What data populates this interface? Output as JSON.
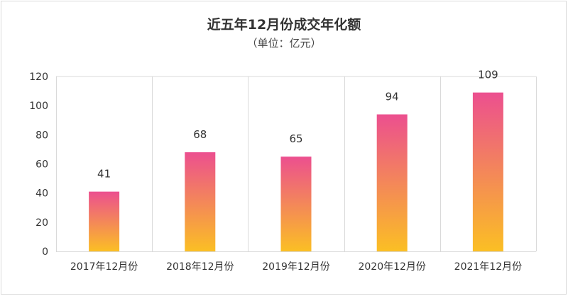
{
  "chart_data": {
    "type": "bar",
    "title": "近五年12月份成交年化额",
    "subtitle": "（单位：亿元）",
    "categories": [
      "2017年12月份",
      "2018年12月份",
      "2019年12月份",
      "2020年12月份",
      "2021年12月份"
    ],
    "values": [
      41,
      68,
      65,
      94,
      109
    ],
    "data_labels": [
      "41",
      "68",
      "65",
      "94",
      "109"
    ],
    "ylim": [
      0,
      120
    ],
    "yticks": [
      "0",
      "20",
      "40",
      "60",
      "80",
      "100",
      "120"
    ],
    "grid": "vertical separators between categories",
    "legend": "none",
    "bar_gradient": {
      "top": "#ec4f8f",
      "bottom": "#fbbf24"
    },
    "gridline_color": "#d9d9d9"
  }
}
